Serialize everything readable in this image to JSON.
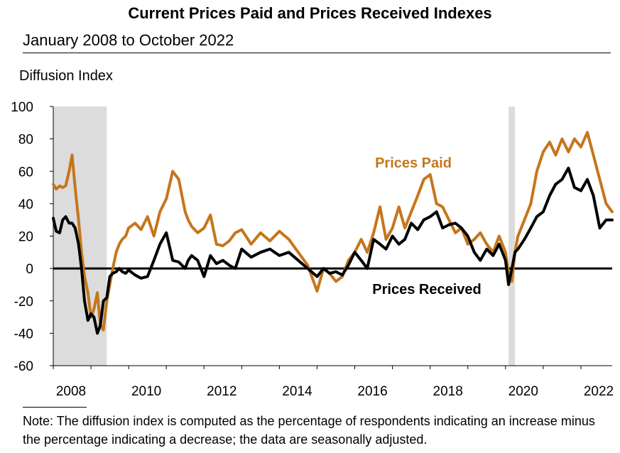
{
  "header": {
    "title": "Current Prices Paid and Prices Received Indexes",
    "subtitle": "January 2008 to October 2022"
  },
  "note": "Note: The diffusion index is computed as the percentage of respondents indicating an increase minus the percentage indicating a decrease; the data are seasonally adjusted.",
  "colors": {
    "prices_paid": "#C5761B",
    "prices_received": "#000000",
    "recession": "#DCDCDC"
  },
  "chart_data": {
    "type": "line",
    "title": "Current Prices Paid and Prices Received Indexes",
    "subtitle": "January 2008 to October 2022",
    "ylabel": "Diffusion Index",
    "xlabel": "",
    "ylim": [
      -60,
      100
    ],
    "yticks": [
      -60,
      -40,
      -20,
      0,
      20,
      40,
      60,
      80,
      100
    ],
    "xlim": [
      2008.0,
      2022.83
    ],
    "xticks": [
      2008,
      2010,
      2012,
      2014,
      2016,
      2018,
      2020,
      2022
    ],
    "xtick_labels": [
      "2008",
      "2010",
      "2012",
      "2014",
      "2016",
      "2018",
      "2020",
      "2022"
    ],
    "zero_line": true,
    "grid": false,
    "recession_bands": [
      [
        2008.0,
        2009.42
      ],
      [
        2020.08,
        2020.25
      ]
    ],
    "series": [
      {
        "name": "Prices Paid",
        "color": "#C5761B",
        "x": [
          2008.0,
          2008.08,
          2008.17,
          2008.25,
          2008.33,
          2008.42,
          2008.5,
          2008.58,
          2008.67,
          2008.75,
          2008.83,
          2008.92,
          2009.0,
          2009.08,
          2009.17,
          2009.25,
          2009.33,
          2009.42,
          2009.5,
          2009.58,
          2009.67,
          2009.75,
          2009.83,
          2009.92,
          2010.0,
          2010.17,
          2010.33,
          2010.5,
          2010.67,
          2010.83,
          2011.0,
          2011.17,
          2011.33,
          2011.5,
          2011.58,
          2011.67,
          2011.83,
          2012.0,
          2012.17,
          2012.33,
          2012.5,
          2012.67,
          2012.83,
          2013.0,
          2013.25,
          2013.5,
          2013.75,
          2014.0,
          2014.25,
          2014.5,
          2014.75,
          2015.0,
          2015.17,
          2015.33,
          2015.5,
          2015.67,
          2015.83,
          2016.0,
          2016.17,
          2016.33,
          2016.5,
          2016.67,
          2016.83,
          2017.0,
          2017.17,
          2017.33,
          2017.5,
          2017.67,
          2017.83,
          2018.0,
          2018.17,
          2018.33,
          2018.5,
          2018.67,
          2018.83,
          2019.0,
          2019.17,
          2019.33,
          2019.5,
          2019.67,
          2019.83,
          2020.0,
          2020.08,
          2020.17,
          2020.25,
          2020.33,
          2020.5,
          2020.67,
          2020.83,
          2021.0,
          2021.17,
          2021.33,
          2021.5,
          2021.67,
          2021.83,
          2022.0,
          2022.17,
          2022.33,
          2022.5,
          2022.67,
          2022.83
        ],
        "values": [
          52,
          49,
          51,
          50,
          51,
          60,
          70,
          50,
          30,
          10,
          -5,
          -15,
          -30,
          -25,
          -15,
          -35,
          -38,
          -20,
          -10,
          0,
          10,
          15,
          18,
          20,
          25,
          28,
          24,
          32,
          20,
          35,
          43,
          60,
          55,
          35,
          30,
          26,
          22,
          25,
          33,
          15,
          14,
          17,
          22,
          24,
          15,
          22,
          17,
          23,
          18,
          10,
          2,
          -14,
          0,
          -3,
          -8,
          -5,
          5,
          10,
          18,
          10,
          22,
          38,
          18,
          25,
          38,
          25,
          35,
          45,
          55,
          58,
          40,
          38,
          30,
          22,
          25,
          15,
          18,
          22,
          15,
          10,
          20,
          10,
          -3,
          -8,
          10,
          20,
          30,
          40,
          60,
          72,
          78,
          70,
          80,
          72,
          80,
          75,
          84,
          70,
          55,
          40,
          35
        ]
      },
      {
        "name": "Prices Received",
        "color": "#000000",
        "x": [
          2008.0,
          2008.08,
          2008.17,
          2008.25,
          2008.33,
          2008.42,
          2008.5,
          2008.58,
          2008.67,
          2008.75,
          2008.83,
          2008.92,
          2009.0,
          2009.08,
          2009.17,
          2009.25,
          2009.33,
          2009.42,
          2009.5,
          2009.58,
          2009.67,
          2009.75,
          2009.83,
          2009.92,
          2010.0,
          2010.17,
          2010.33,
          2010.5,
          2010.67,
          2010.83,
          2011.0,
          2011.17,
          2011.33,
          2011.5,
          2011.58,
          2011.67,
          2011.83,
          2012.0,
          2012.17,
          2012.33,
          2012.5,
          2012.67,
          2012.83,
          2013.0,
          2013.25,
          2013.5,
          2013.75,
          2014.0,
          2014.25,
          2014.5,
          2014.75,
          2015.0,
          2015.17,
          2015.33,
          2015.5,
          2015.67,
          2015.83,
          2016.0,
          2016.17,
          2016.33,
          2016.5,
          2016.67,
          2016.83,
          2017.0,
          2017.17,
          2017.33,
          2017.5,
          2017.67,
          2017.83,
          2018.0,
          2018.17,
          2018.33,
          2018.5,
          2018.67,
          2018.83,
          2019.0,
          2019.17,
          2019.33,
          2019.5,
          2019.67,
          2019.83,
          2020.0,
          2020.08,
          2020.17,
          2020.25,
          2020.33,
          2020.5,
          2020.67,
          2020.83,
          2021.0,
          2021.17,
          2021.33,
          2021.5,
          2021.67,
          2021.83,
          2022.0,
          2022.17,
          2022.33,
          2022.5,
          2022.67,
          2022.83
        ],
        "values": [
          31,
          23,
          22,
          30,
          32,
          28,
          28,
          25,
          15,
          0,
          -20,
          -32,
          -28,
          -30,
          -40,
          -35,
          -20,
          -18,
          -5,
          -3,
          -2,
          0,
          -2,
          -3,
          -1,
          -4,
          -6,
          -5,
          5,
          15,
          22,
          5,
          4,
          0,
          5,
          8,
          5,
          -5,
          8,
          3,
          5,
          2,
          0,
          12,
          7,
          10,
          12,
          8,
          10,
          5,
          0,
          -5,
          0,
          -3,
          -2,
          -4,
          2,
          10,
          5,
          0,
          18,
          15,
          12,
          20,
          15,
          18,
          28,
          24,
          30,
          32,
          35,
          25,
          27,
          28,
          25,
          20,
          10,
          5,
          12,
          8,
          15,
          5,
          -10,
          0,
          10,
          12,
          18,
          25,
          32,
          35,
          45,
          52,
          55,
          62,
          50,
          48,
          55,
          45,
          25,
          30,
          30
        ]
      }
    ]
  }
}
